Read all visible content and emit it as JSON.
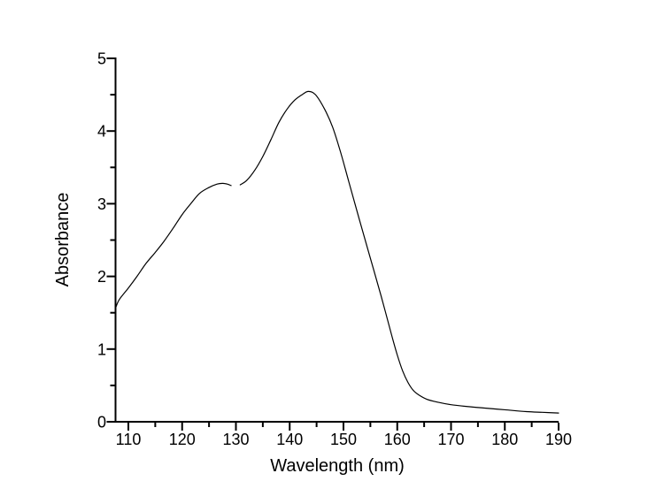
{
  "page": {
    "background_color": "#ffffff"
  },
  "chart_data": {
    "type": "line",
    "title": "",
    "xlabel": "Wavelength (nm)",
    "ylabel": "Absorbance",
    "xlim": [
      107.6,
      190
    ],
    "ylim": [
      0,
      5
    ],
    "x_major_ticks": [
      110,
      120,
      130,
      140,
      150,
      160,
      170,
      180,
      190
    ],
    "x_minor_ticks": [
      115,
      125,
      135,
      145,
      155,
      165,
      175,
      185
    ],
    "y_major_ticks": [
      0,
      1,
      2,
      3,
      4,
      5
    ],
    "y_minor_ticks": [
      0.5,
      1.5,
      2.5,
      3.5,
      4.5
    ],
    "grid": false,
    "legend": false,
    "axis_color": "#000000",
    "line_color": "#000000",
    "background_color": "#ffffff",
    "series": [
      {
        "name": "spectrum-segment-1",
        "points": [
          [
            107.6,
            1.56
          ],
          [
            108.3,
            1.68
          ],
          [
            110.0,
            1.84
          ],
          [
            111.6,
            2.0
          ],
          [
            113.3,
            2.18
          ],
          [
            115.0,
            2.33
          ],
          [
            116.6,
            2.48
          ],
          [
            118.3,
            2.66
          ],
          [
            120.0,
            2.85
          ],
          [
            121.6,
            3.0
          ],
          [
            123.2,
            3.14
          ],
          [
            124.9,
            3.22
          ],
          [
            126.5,
            3.27
          ],
          [
            127.5,
            3.28
          ],
          [
            128.4,
            3.27
          ],
          [
            129.1,
            3.25
          ]
        ]
      },
      {
        "name": "spectrum-segment-2",
        "points": [
          [
            130.8,
            3.26
          ],
          [
            132.0,
            3.32
          ],
          [
            133.5,
            3.46
          ],
          [
            135.0,
            3.65
          ],
          [
            136.5,
            3.88
          ],
          [
            138.0,
            4.12
          ],
          [
            139.5,
            4.3
          ],
          [
            141.0,
            4.43
          ],
          [
            142.5,
            4.51
          ],
          [
            143.5,
            4.545
          ],
          [
            144.8,
            4.5
          ],
          [
            146.5,
            4.3
          ],
          [
            148.0,
            4.05
          ],
          [
            149.5,
            3.7
          ],
          [
            151.0,
            3.3
          ],
          [
            153.0,
            2.77
          ],
          [
            155.0,
            2.25
          ],
          [
            157.0,
            1.73
          ],
          [
            159.0,
            1.18
          ],
          [
            160.0,
            0.92
          ],
          [
            161.0,
            0.7
          ],
          [
            162.0,
            0.54
          ],
          [
            163.0,
            0.43
          ],
          [
            164.0,
            0.37
          ],
          [
            165.5,
            0.31
          ],
          [
            167.5,
            0.27
          ],
          [
            170.0,
            0.235
          ],
          [
            173.0,
            0.21
          ],
          [
            176.0,
            0.19
          ],
          [
            180.0,
            0.165
          ],
          [
            184.0,
            0.14
          ],
          [
            187.0,
            0.13
          ],
          [
            190.0,
            0.12
          ]
        ]
      }
    ]
  }
}
